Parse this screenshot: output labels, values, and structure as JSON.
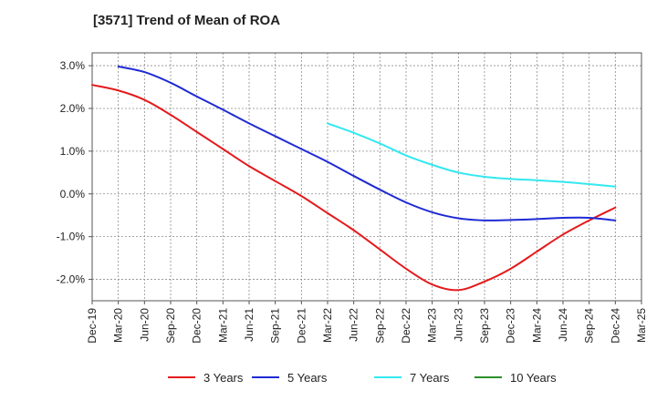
{
  "chart_data": {
    "type": "line",
    "title": "[3571]  Trend of Mean of ROA",
    "xlabel": "",
    "ylabel": "",
    "categories": [
      "Dec-19",
      "Mar-20",
      "Jun-20",
      "Sep-20",
      "Dec-20",
      "Mar-21",
      "Jun-21",
      "Sep-21",
      "Dec-21",
      "Mar-22",
      "Jun-22",
      "Sep-22",
      "Dec-22",
      "Mar-23",
      "Jun-23",
      "Sep-23",
      "Dec-23",
      "Mar-24",
      "Jun-24",
      "Sep-24",
      "Dec-24",
      "Mar-25"
    ],
    "y_ticks": [
      3.0,
      2.0,
      1.0,
      0.0,
      -1.0,
      -2.0
    ],
    "y_tick_labels": [
      "3.0%",
      "2.0%",
      "1.0%",
      "0.0%",
      "-1.0%",
      "-2.0%"
    ],
    "ylim": [
      -2.5,
      3.3
    ],
    "grid": true,
    "legend_position": "bottom-center",
    "series": [
      {
        "name": "3 Years",
        "color": "#e41a1c",
        "values": [
          2.55,
          2.42,
          2.2,
          1.85,
          1.45,
          1.05,
          0.65,
          0.3,
          -0.05,
          -0.45,
          -0.85,
          -1.3,
          -1.75,
          -2.12,
          -2.25,
          -2.05,
          -1.75,
          -1.35,
          -0.95,
          -0.62,
          -0.32,
          null
        ]
      },
      {
        "name": "5 Years",
        "color": "#1f2ad4",
        "values": [
          null,
          2.98,
          2.85,
          2.6,
          2.28,
          1.97,
          1.65,
          1.35,
          1.05,
          0.75,
          0.42,
          0.1,
          -0.2,
          -0.43,
          -0.57,
          -0.62,
          -0.61,
          -0.59,
          -0.56,
          -0.56,
          -0.62,
          null
        ]
      },
      {
        "name": "7 Years",
        "color": "#33e8f0",
        "values": [
          null,
          null,
          null,
          null,
          null,
          null,
          null,
          null,
          null,
          1.65,
          1.43,
          1.18,
          0.9,
          0.68,
          0.5,
          0.4,
          0.35,
          0.32,
          0.28,
          0.23,
          0.17,
          null
        ]
      },
      {
        "name": "10 Years",
        "color": "#2a8f2a",
        "values": [
          null,
          null,
          null,
          null,
          null,
          null,
          null,
          null,
          null,
          null,
          null,
          null,
          null,
          null,
          null,
          null,
          null,
          null,
          null,
          null,
          null,
          null
        ]
      }
    ]
  }
}
